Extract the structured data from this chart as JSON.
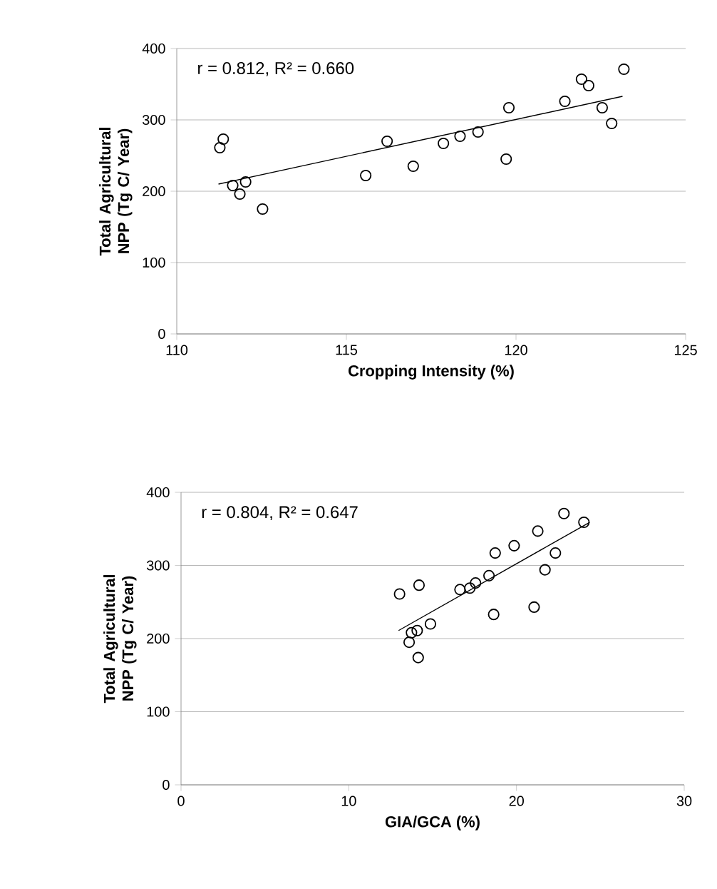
{
  "chart_data": [
    {
      "type": "scatter",
      "xlabel": "Cropping Intensity (%)",
      "ylabel": "Total Agricultural NPP (Tg C/ Year)",
      "xlim": [
        110,
        125
      ],
      "xticks": [
        110,
        115,
        120,
        125
      ],
      "ylim": [
        0,
        400
      ],
      "yticks": [
        0,
        100,
        200,
        300,
        400
      ],
      "grid": "y",
      "annotations": [
        "r = 0.812, R² = 0.660"
      ],
      "series": [
        {
          "marker": "circle",
          "color": "#000000",
          "x": [
            111.27,
            111.37,
            111.65,
            111.86,
            112.03,
            112.53,
            115.57,
            116.2,
            116.97,
            117.86,
            118.35,
            118.88,
            119.71,
            119.79,
            121.44,
            121.93,
            122.14,
            122.54,
            122.82,
            123.18
          ],
          "values": [
            261,
            273,
            208,
            196,
            213,
            175,
            222,
            270,
            235,
            267,
            277,
            283,
            245,
            317,
            326,
            357,
            348,
            317,
            295,
            371
          ]
        },
        {
          "type": "line",
          "marker": "none",
          "color": "#000000",
          "x": [
            111.23,
            123.14
          ],
          "values": [
            210,
            333
          ]
        }
      ]
    },
    {
      "type": "scatter",
      "xlabel": "GIA/GCA (%)",
      "ylabel": "Total Agricultural NPP (Tg C/ Year)",
      "xlim": [
        0,
        30
      ],
      "xticks": [
        0,
        10,
        20,
        30
      ],
      "ylim": [
        0,
        400
      ],
      "yticks": [
        0,
        100,
        200,
        300,
        400
      ],
      "grid": "y",
      "annotations": [
        "r = 0.804, R² = 0.647"
      ],
      "series": [
        {
          "marker": "circle",
          "color": "#000000",
          "x": [
            13.03,
            14.19,
            13.74,
            14.08,
            13.6,
            14.14,
            14.87,
            16.63,
            17.22,
            17.56,
            18.36,
            18.64,
            18.73,
            19.86,
            21.05,
            21.27,
            21.7,
            22.32,
            22.83,
            24.02
          ],
          "values": [
            261,
            273,
            208,
            211,
            195,
            174,
            220,
            267,
            269,
            276,
            286,
            233,
            317,
            327,
            243,
            347,
            294,
            317,
            371,
            359
          ]
        },
        {
          "type": "line",
          "marker": "none",
          "color": "#000000",
          "x": [
            12.97,
            24.36
          ],
          "values": [
            211,
            359
          ]
        }
      ]
    }
  ]
}
